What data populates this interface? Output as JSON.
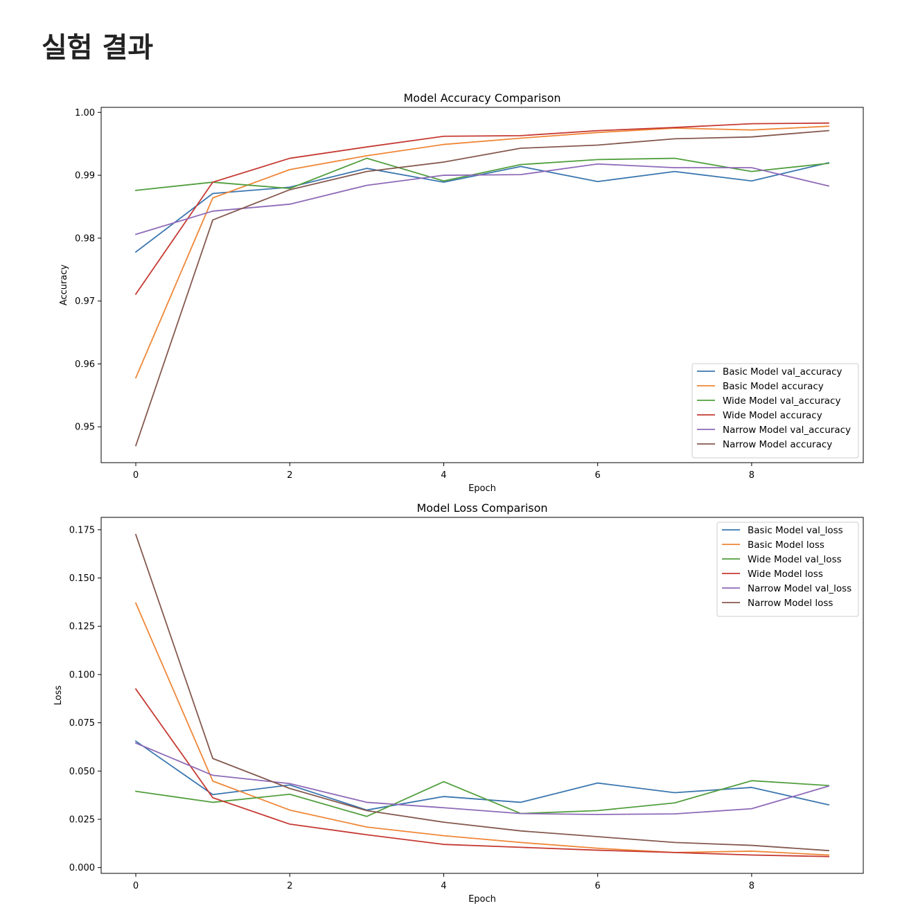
{
  "page": {
    "title": "실험 결과"
  },
  "colors": {
    "basic_val": "#3a76af",
    "basic": "#ef8636",
    "wide_val": "#519e3e",
    "wide": "#c53932",
    "narrow_val": "#8d69b8",
    "narrow": "#84584e"
  },
  "chart_data": [
    {
      "type": "line",
      "title": "Model Accuracy Comparison",
      "xlabel": "Epoch",
      "ylabel": "Accuracy",
      "x": [
        0,
        1,
        2,
        3,
        4,
        5,
        6,
        7,
        8,
        9
      ],
      "xlim": [
        -0.45,
        9.45
      ],
      "ylim": [
        0.9443,
        1.0008
      ],
      "xticks": [
        0,
        2,
        4,
        6,
        8
      ],
      "xtick_labels": [
        "0",
        "2",
        "4",
        "6",
        "8"
      ],
      "yticks": [
        0.95,
        0.96,
        0.97,
        0.98,
        0.99,
        1.0
      ],
      "ytick_labels": [
        "0.95",
        "0.96",
        "0.97",
        "0.98",
        "0.99",
        "1.00"
      ],
      "grid": false,
      "legend_position": "lower-right",
      "series": [
        {
          "name": "Basic Model val_accuracy",
          "color_key": "basic_val",
          "values": [
            0.9778,
            0.9871,
            0.9881,
            0.9911,
            0.9889,
            0.9914,
            0.989,
            0.9906,
            0.9891,
            0.992
          ]
        },
        {
          "name": "Basic Model accuracy",
          "color_key": "basic",
          "values": [
            0.9578,
            0.9864,
            0.9909,
            0.9931,
            0.9949,
            0.9959,
            0.9968,
            0.9975,
            0.9972,
            0.9978
          ]
        },
        {
          "name": "Wide Model val_accuracy",
          "color_key": "wide_val",
          "values": [
            0.9876,
            0.9889,
            0.9879,
            0.9927,
            0.9891,
            0.9917,
            0.9925,
            0.9927,
            0.9906,
            0.9919
          ]
        },
        {
          "name": "Wide Model accuracy",
          "color_key": "wide",
          "values": [
            0.9711,
            0.9889,
            0.9927,
            0.9945,
            0.9962,
            0.9963,
            0.9971,
            0.9976,
            0.9982,
            0.9983
          ]
        },
        {
          "name": "Narrow Model val_accuracy",
          "color_key": "narrow_val",
          "values": [
            0.9806,
            0.9843,
            0.9854,
            0.9884,
            0.99,
            0.9901,
            0.9918,
            0.9912,
            0.9912,
            0.9883
          ]
        },
        {
          "name": "Narrow Model accuracy",
          "color_key": "narrow",
          "values": [
            0.947,
            0.9829,
            0.9877,
            0.9906,
            0.9921,
            0.9943,
            0.9948,
            0.9958,
            0.9961,
            0.9971
          ]
        }
      ]
    },
    {
      "type": "line",
      "title": "Model Loss Comparison",
      "xlabel": "Epoch",
      "ylabel": "Loss",
      "x": [
        0,
        1,
        2,
        3,
        4,
        5,
        6,
        7,
        8,
        9
      ],
      "xlim": [
        -0.45,
        9.45
      ],
      "ylim": [
        -0.003,
        0.1814
      ],
      "xticks": [
        0,
        2,
        4,
        6,
        8
      ],
      "xtick_labels": [
        "0",
        "2",
        "4",
        "6",
        "8"
      ],
      "yticks": [
        0.0,
        0.025,
        0.05,
        0.075,
        0.1,
        0.125,
        0.15,
        0.175
      ],
      "ytick_labels": [
        "0.000",
        "0.025",
        "0.050",
        "0.075",
        "0.100",
        "0.125",
        "0.150",
        "0.175"
      ],
      "grid": false,
      "legend_position": "upper-right",
      "series": [
        {
          "name": "Basic Model val_loss",
          "color_key": "basic_val",
          "values": [
            0.0655,
            0.0378,
            0.0428,
            0.0298,
            0.0368,
            0.0338,
            0.0438,
            0.0388,
            0.0415,
            0.0325
          ]
        },
        {
          "name": "Basic Model loss",
          "color_key": "basic",
          "values": [
            0.137,
            0.0448,
            0.0298,
            0.021,
            0.0165,
            0.013,
            0.01,
            0.0078,
            0.0085,
            0.0065
          ]
        },
        {
          "name": "Wide Model val_loss",
          "color_key": "wide_val",
          "values": [
            0.0395,
            0.0338,
            0.038,
            0.0265,
            0.0445,
            0.028,
            0.0295,
            0.0335,
            0.045,
            0.0425
          ]
        },
        {
          "name": "Wide Model loss",
          "color_key": "wide",
          "values": [
            0.0925,
            0.0362,
            0.0225,
            0.017,
            0.012,
            0.0105,
            0.009,
            0.0078,
            0.0065,
            0.0057
          ]
        },
        {
          "name": "Narrow Model val_loss",
          "color_key": "narrow_val",
          "values": [
            0.0645,
            0.0478,
            0.0435,
            0.0338,
            0.031,
            0.028,
            0.0275,
            0.0278,
            0.0305,
            0.0422
          ]
        },
        {
          "name": "Narrow Model loss",
          "color_key": "narrow",
          "values": [
            0.1725,
            0.0565,
            0.041,
            0.0295,
            0.0235,
            0.019,
            0.016,
            0.013,
            0.0115,
            0.0088
          ]
        }
      ]
    }
  ]
}
